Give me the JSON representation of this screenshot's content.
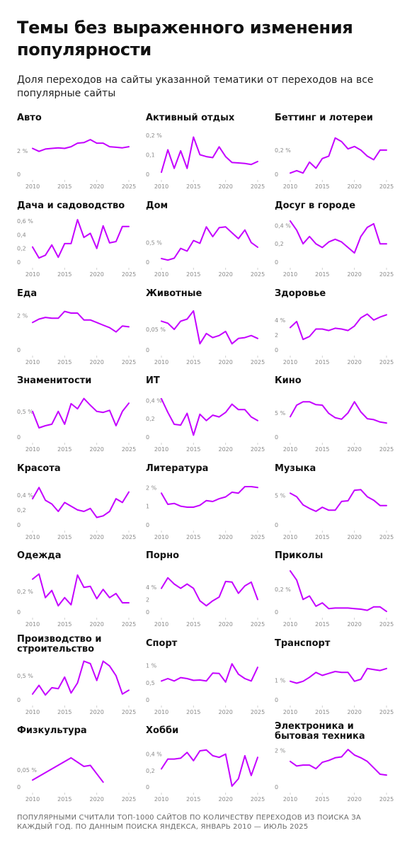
{
  "title": "Темы без выраженного изменения популярности",
  "subtitle": "Доля переходов на сайты указанной тематики от переходов на все популярные сайты",
  "footer": "Популярными считали топ-1000 сайтов по количеству переходов из поиска за каждый год. По данным поиска Яндекса, январь 2010 — июль 2025",
  "colors": {
    "line": "#c400ff",
    "text": "#111111",
    "axis": "#8a8a8a"
  },
  "chart_data": [
    {
      "type": "line",
      "title": "Авто",
      "x_ticks": [
        2010,
        2015,
        2020,
        2025
      ],
      "y_ticks": [
        "0",
        "2 %"
      ],
      "y_tick_values": [
        0,
        2
      ],
      "ylim": [
        0,
        3.5
      ],
      "x": [
        2010,
        2011,
        2012,
        2013,
        2014,
        2015,
        2016,
        2017,
        2018,
        2019,
        2020,
        2021,
        2022,
        2023,
        2024,
        2025
      ],
      "values": [
        2.2,
        1.95,
        2.15,
        2.2,
        2.25,
        2.2,
        2.35,
        2.65,
        2.7,
        2.95,
        2.65,
        2.65,
        2.35,
        2.3,
        2.25,
        2.35
      ]
    },
    {
      "type": "line",
      "title": "Активный отдых",
      "x_ticks": [
        2010,
        2015,
        2020,
        2025
      ],
      "y_ticks": [
        "0",
        "0,1",
        "0,2 %"
      ],
      "y_tick_values": [
        0,
        0.1,
        0.2
      ],
      "ylim": [
        0,
        0.21
      ],
      "x": [
        2010,
        2011,
        2012,
        2013,
        2014,
        2015,
        2016,
        2017,
        2018,
        2019,
        2020,
        2021,
        2022,
        2023,
        2024,
        2025
      ],
      "values": [
        0.01,
        0.125,
        0.03,
        0.12,
        0.03,
        0.19,
        0.1,
        0.09,
        0.085,
        0.14,
        0.09,
        0.06,
        0.058,
        0.055,
        0.05,
        0.065
      ]
    },
    {
      "type": "line",
      "title": "Беттинг и лотереи",
      "x_ticks": [
        2010,
        2015,
        2020,
        2025
      ],
      "y_ticks": [
        "0",
        "0,2 %"
      ],
      "y_tick_values": [
        0,
        0.2
      ],
      "ylim": [
        0,
        0.34
      ],
      "x": [
        2010,
        2011,
        2012,
        2013,
        2014,
        2015,
        2016,
        2017,
        2018,
        2019,
        2020,
        2021,
        2022,
        2023,
        2024,
        2025
      ],
      "values": [
        0.01,
        0.03,
        0.01,
        0.1,
        0.05,
        0.13,
        0.15,
        0.3,
        0.27,
        0.21,
        0.23,
        0.2,
        0.15,
        0.12,
        0.2,
        0.2
      ]
    },
    {
      "type": "line",
      "title": "Дача и садоводство",
      "x_ticks": [
        2010,
        2015,
        2020,
        2025
      ],
      "y_ticks": [
        "0",
        "0,2",
        "0,4",
        "0,6 %"
      ],
      "y_tick_values": [
        0,
        0.2,
        0.4,
        0.6
      ],
      "ylim": [
        0,
        0.6
      ],
      "x": [
        2010,
        2011,
        2012,
        2013,
        2014,
        2015,
        2016,
        2017,
        2018,
        2019,
        2020,
        2021,
        2022,
        2023,
        2024,
        2025
      ],
      "values": [
        0.22,
        0.06,
        0.1,
        0.25,
        0.07,
        0.27,
        0.27,
        0.62,
        0.36,
        0.42,
        0.2,
        0.53,
        0.28,
        0.3,
        0.52,
        0.52
      ]
    },
    {
      "type": "line",
      "title": "Дом",
      "x_ticks": [
        2010,
        2015,
        2020,
        2025
      ],
      "y_ticks": [
        "0",
        "0,5 %"
      ],
      "y_tick_values": [
        0,
        0.5
      ],
      "ylim": [
        0,
        1.05
      ],
      "x": [
        2010,
        2011,
        2012,
        2013,
        2014,
        2015,
        2016,
        2017,
        2018,
        2019,
        2020,
        2021,
        2022,
        2023,
        2024,
        2025
      ],
      "values": [
        0.09,
        0.05,
        0.1,
        0.35,
        0.28,
        0.55,
        0.48,
        0.9,
        0.65,
        0.88,
        0.9,
        0.75,
        0.6,
        0.82,
        0.5,
        0.38
      ]
    },
    {
      "type": "line",
      "title": "Досуг в городе",
      "x_ticks": [
        2010,
        2015,
        2020,
        2025
      ],
      "y_ticks": [
        "0",
        "0,2",
        "0,4 %"
      ],
      "y_tick_values": [
        0,
        0.2,
        0.4
      ],
      "ylim": [
        0,
        0.45
      ],
      "x": [
        2010,
        2011,
        2012,
        2013,
        2014,
        2015,
        2016,
        2017,
        2018,
        2019,
        2020,
        2021,
        2022,
        2023,
        2024,
        2025
      ],
      "values": [
        0.45,
        0.35,
        0.2,
        0.28,
        0.2,
        0.16,
        0.22,
        0.25,
        0.22,
        0.16,
        0.1,
        0.28,
        0.38,
        0.42,
        0.2,
        0.2
      ]
    },
    {
      "type": "line",
      "title": "Еда",
      "x_ticks": [
        2010,
        2015,
        2020,
        2025
      ],
      "y_ticks": [
        "0",
        "2 %"
      ],
      "y_tick_values": [
        0,
        2
      ],
      "ylim": [
        0,
        2.4
      ],
      "x": [
        2010,
        2011,
        2012,
        2013,
        2014,
        2015,
        2016,
        2017,
        2018,
        2019,
        2020,
        2021,
        2022,
        2023,
        2024,
        2025
      ],
      "values": [
        1.6,
        1.8,
        1.9,
        1.85,
        1.85,
        2.25,
        2.15,
        2.15,
        1.75,
        1.75,
        1.6,
        1.45,
        1.3,
        1.05,
        1.4,
        1.35
      ]
    },
    {
      "type": "line",
      "title": "Животные",
      "x_ticks": [
        2010,
        2015,
        2020,
        2025
      ],
      "y_ticks": [
        "0",
        "0,05 %"
      ],
      "y_tick_values": [
        0,
        0.05
      ],
      "ylim": [
        0,
        0.1
      ],
      "x": [
        2010,
        2011,
        2012,
        2013,
        2014,
        2015,
        2016,
        2017,
        2018,
        2019,
        2020,
        2021,
        2022,
        2023,
        2024,
        2025
      ],
      "values": [
        0.07,
        0.065,
        0.05,
        0.07,
        0.075,
        0.095,
        0.015,
        0.04,
        0.03,
        0.035,
        0.045,
        0.015,
        0.028,
        0.03,
        0.035,
        0.028
      ]
    },
    {
      "type": "line",
      "title": "Здоровье",
      "x_ticks": [
        2010,
        2015,
        2020,
        2025
      ],
      "y_ticks": [
        "0",
        "2",
        "4 %"
      ],
      "y_tick_values": [
        0,
        2,
        4
      ],
      "ylim": [
        0,
        5.5
      ],
      "x": [
        2010,
        2011,
        2012,
        2013,
        2014,
        2015,
        2016,
        2017,
        2018,
        2019,
        2020,
        2021,
        2022,
        2023,
        2024,
        2025
      ],
      "values": [
        3.0,
        3.8,
        1.4,
        1.8,
        2.8,
        2.8,
        2.6,
        2.9,
        2.8,
        2.6,
        3.2,
        4.3,
        4.8,
        4.0,
        4.4,
        4.7
      ]
    },
    {
      "type": "line",
      "title": "Знаменитости",
      "x_ticks": [
        2010,
        2015,
        2020,
        2025
      ],
      "y_ticks": [
        "0",
        "0,5 %"
      ],
      "y_tick_values": [
        0,
        0.5
      ],
      "ylim": [
        0,
        0.8
      ],
      "x": [
        2010,
        2011,
        2012,
        2013,
        2014,
        2015,
        2016,
        2017,
        2018,
        2019,
        2020,
        2021,
        2022,
        2023,
        2024,
        2025
      ],
      "values": [
        0.5,
        0.18,
        0.22,
        0.25,
        0.5,
        0.25,
        0.65,
        0.55,
        0.75,
        0.62,
        0.5,
        0.48,
        0.52,
        0.22,
        0.5,
        0.66
      ]
    },
    {
      "type": "line",
      "title": "ИТ",
      "x_ticks": [
        2010,
        2015,
        2020,
        2025
      ],
      "y_ticks": [
        "0",
        "0,2",
        "0,4 %"
      ],
      "y_tick_values": [
        0,
        0.2,
        0.4
      ],
      "ylim": [
        0,
        0.45
      ],
      "x": [
        2010,
        2011,
        2012,
        2013,
        2014,
        2015,
        2016,
        2017,
        2018,
        2019,
        2020,
        2021,
        2022,
        2023,
        2024,
        2025
      ],
      "values": [
        0.42,
        0.27,
        0.14,
        0.13,
        0.26,
        0.02,
        0.25,
        0.18,
        0.24,
        0.22,
        0.27,
        0.36,
        0.3,
        0.3,
        0.22,
        0.18
      ]
    },
    {
      "type": "line",
      "title": "Кино",
      "x_ticks": [
        2010,
        2015,
        2020,
        2025
      ],
      "y_ticks": [
        "0",
        "5 %"
      ],
      "y_tick_values": [
        0,
        5
      ],
      "ylim": [
        0,
        8.5
      ],
      "x": [
        2010,
        2011,
        2012,
        2013,
        2014,
        2015,
        2016,
        2017,
        2018,
        2019,
        2020,
        2021,
        2022,
        2023,
        2024,
        2025
      ],
      "values": [
        4.2,
        6.6,
        7.3,
        7.3,
        6.7,
        6.6,
        4.9,
        4.0,
        3.7,
        5.0,
        7.3,
        5.2,
        3.8,
        3.6,
        3.1,
        2.9
      ]
    },
    {
      "type": "line",
      "title": "Красота",
      "x_ticks": [
        2010,
        2015,
        2020,
        2025
      ],
      "y_ticks": [
        "0",
        "0,2",
        "0,4 %"
      ],
      "y_tick_values": [
        0,
        0.2,
        0.4
      ],
      "ylim": [
        0,
        0.55
      ],
      "x": [
        2010,
        2011,
        2012,
        2013,
        2014,
        2015,
        2016,
        2017,
        2018,
        2019,
        2020,
        2021,
        2022,
        2023,
        2024,
        2025
      ],
      "values": [
        0.35,
        0.5,
        0.33,
        0.28,
        0.18,
        0.3,
        0.25,
        0.2,
        0.18,
        0.22,
        0.1,
        0.12,
        0.18,
        0.35,
        0.3,
        0.44
      ]
    },
    {
      "type": "line",
      "title": "Литература",
      "x_ticks": [
        2010,
        2015,
        2020,
        2025
      ],
      "y_ticks": [
        "0",
        "1",
        "2 %"
      ],
      "y_tick_values": [
        0,
        1,
        2
      ],
      "ylim": [
        0,
        2.2
      ],
      "x": [
        2010,
        2011,
        2012,
        2013,
        2014,
        2015,
        2016,
        2017,
        2018,
        2019,
        2020,
        2021,
        2022,
        2023,
        2024,
        2025
      ],
      "values": [
        1.7,
        1.1,
        1.15,
        1.0,
        0.95,
        0.95,
        1.05,
        1.3,
        1.25,
        1.4,
        1.5,
        1.75,
        1.7,
        2.05,
        2.05,
        2.0
      ]
    },
    {
      "type": "line",
      "title": "Музыка",
      "x_ticks": [
        2010,
        2015,
        2020,
        2025
      ],
      "y_ticks": [
        "0",
        "5 %"
      ],
      "y_tick_values": [
        0,
        5
      ],
      "ylim": [
        0,
        7
      ],
      "x": [
        2010,
        2011,
        2012,
        2013,
        2014,
        2015,
        2016,
        2017,
        2018,
        2019,
        2020,
        2021,
        2022,
        2023,
        2024,
        2025
      ],
      "values": [
        5.4,
        4.8,
        3.4,
        2.8,
        2.3,
        3.0,
        2.5,
        2.5,
        4.0,
        4.1,
        5.9,
        6.0,
        4.8,
        4.2,
        3.3,
        3.3
      ]
    },
    {
      "type": "line",
      "title": "Одежда",
      "x_ticks": [
        2010,
        2015,
        2020,
        2025
      ],
      "y_ticks": [
        "0",
        "0,2 %"
      ],
      "y_tick_values": [
        0,
        0.2
      ],
      "ylim": [
        0,
        0.4
      ],
      "x": [
        2010,
        2011,
        2012,
        2013,
        2014,
        2015,
        2016,
        2017,
        2018,
        2019,
        2020,
        2021,
        2022,
        2023,
        2024,
        2025
      ],
      "values": [
        0.32,
        0.37,
        0.14,
        0.21,
        0.06,
        0.14,
        0.07,
        0.36,
        0.24,
        0.25,
        0.13,
        0.22,
        0.14,
        0.18,
        0.09,
        0.09
      ]
    },
    {
      "type": "line",
      "title": "Порно",
      "x_ticks": [
        2010,
        2015,
        2020,
        2025
      ],
      "y_ticks": [
        "0",
        "2",
        "4 %"
      ],
      "y_tick_values": [
        0,
        2,
        4
      ],
      "ylim": [
        0,
        6.6
      ],
      "x": [
        2010,
        2011,
        2012,
        2013,
        2014,
        2015,
        2016,
        2017,
        2018,
        2019,
        2020,
        2021,
        2022,
        2023,
        2024,
        2025
      ],
      "values": [
        3.8,
        5.5,
        4.5,
        3.8,
        4.5,
        3.8,
        1.8,
        1.0,
        1.8,
        2.4,
        4.9,
        4.8,
        3.0,
        4.2,
        4.8,
        2.0
      ]
    },
    {
      "type": "line",
      "title": "Приколы",
      "x_ticks": [
        2010,
        2015,
        2020,
        2025
      ],
      "y_ticks": [
        "0",
        "0,2 %"
      ],
      "y_tick_values": [
        0,
        0.2
      ],
      "ylim": [
        0,
        0.36
      ],
      "x": [
        2010,
        2011,
        2012,
        2013,
        2014,
        2015,
        2016,
        2017,
        2018,
        2019,
        2020,
        2021,
        2022,
        2023,
        2024,
        2025
      ],
      "values": [
        0.36,
        0.28,
        0.11,
        0.14,
        0.05,
        0.08,
        0.03,
        0.035,
        0.035,
        0.035,
        0.03,
        0.025,
        0.015,
        0.045,
        0.045,
        0.005
      ]
    },
    {
      "type": "line",
      "title": "Производство и строительство",
      "x_ticks": [
        2010,
        2015,
        2020,
        2025
      ],
      "y_ticks": [
        "0",
        "0,5 %"
      ],
      "y_tick_values": [
        0,
        0.5
      ],
      "ylim": [
        0,
        0.85
      ],
      "x": [
        2010,
        2011,
        2012,
        2013,
        2014,
        2015,
        2016,
        2017,
        2018,
        2019,
        2020,
        2021,
        2022,
        2023,
        2024,
        2025
      ],
      "values": [
        0.12,
        0.3,
        0.1,
        0.25,
        0.23,
        0.47,
        0.14,
        0.35,
        0.8,
        0.75,
        0.4,
        0.8,
        0.7,
        0.5,
        0.12,
        0.2
      ]
    },
    {
      "type": "line",
      "title": "Спорт",
      "x_ticks": [
        2010,
        2015,
        2020,
        2025
      ],
      "y_ticks": [
        "0",
        "0,5",
        "1 %"
      ],
      "y_tick_values": [
        0,
        0.5,
        1
      ],
      "ylim": [
        0,
        1.2
      ],
      "x": [
        2010,
        2011,
        2012,
        2013,
        2014,
        2015,
        2016,
        2017,
        2018,
        2019,
        2020,
        2021,
        2022,
        2023,
        2024,
        2025
      ],
      "values": [
        0.55,
        0.62,
        0.55,
        0.65,
        0.62,
        0.57,
        0.58,
        0.55,
        0.78,
        0.77,
        0.52,
        1.05,
        0.75,
        0.62,
        0.55,
        0.95
      ]
    },
    {
      "type": "line",
      "title": "Транспорт",
      "x_ticks": [
        2010,
        2015,
        2020,
        2025
      ],
      "y_ticks": [
        "0",
        "1 %"
      ],
      "y_tick_values": [
        0,
        1
      ],
      "ylim": [
        0,
        2.1
      ],
      "x": [
        2010,
        2011,
        2012,
        2013,
        2014,
        2015,
        2016,
        2017,
        2018,
        2019,
        2020,
        2021,
        2022,
        2023,
        2024,
        2025
      ],
      "values": [
        0.95,
        0.85,
        0.95,
        1.15,
        1.4,
        1.25,
        1.35,
        1.45,
        1.4,
        1.4,
        0.95,
        1.05,
        1.6,
        1.55,
        1.5,
        1.6
      ]
    },
    {
      "type": "line",
      "title": "Физкультура",
      "x_ticks": [
        2010,
        2015,
        2020,
        2025
      ],
      "y_ticks": [
        "0",
        "0,05 %"
      ],
      "y_tick_values": [
        0,
        0.05
      ],
      "ylim": [
        0,
        0.12
      ],
      "x": [
        2010,
        2016,
        2018,
        2019,
        2021
      ],
      "values": [
        0.02,
        0.085,
        0.06,
        0.063,
        0.014
      ]
    },
    {
      "type": "line",
      "title": "Хобби",
      "x_ticks": [
        2010,
        2015,
        2020,
        2025
      ],
      "y_ticks": [
        "0",
        "0,2",
        "0,4 %"
      ],
      "y_tick_values": [
        0,
        0.2,
        0.4
      ],
      "ylim": [
        0,
        0.5
      ],
      "x": [
        2010,
        2011,
        2012,
        2013,
        2014,
        2015,
        2016,
        2017,
        2018,
        2019,
        2020,
        2021,
        2022,
        2023,
        2024,
        2025
      ],
      "values": [
        0.22,
        0.34,
        0.34,
        0.35,
        0.42,
        0.32,
        0.44,
        0.45,
        0.38,
        0.36,
        0.4,
        0.01,
        0.1,
        0.38,
        0.14,
        0.36
      ]
    },
    {
      "type": "line",
      "title": "Электроника и бытовая техника",
      "x_ticks": [
        2010,
        2015,
        2020,
        2025
      ],
      "y_ticks": [
        "0",
        "2 %"
      ],
      "y_tick_values": [
        0,
        2
      ],
      "ylim": [
        0,
        2.25
      ],
      "x": [
        2010,
        2011,
        2012,
        2013,
        2014,
        2015,
        2016,
        2017,
        2018,
        2019,
        2020,
        2021,
        2022,
        2023,
        2024,
        2025
      ],
      "values": [
        1.4,
        1.15,
        1.2,
        1.2,
        1.0,
        1.35,
        1.45,
        1.6,
        1.65,
        2.05,
        1.75,
        1.6,
        1.4,
        1.05,
        0.7,
        0.65
      ]
    }
  ]
}
